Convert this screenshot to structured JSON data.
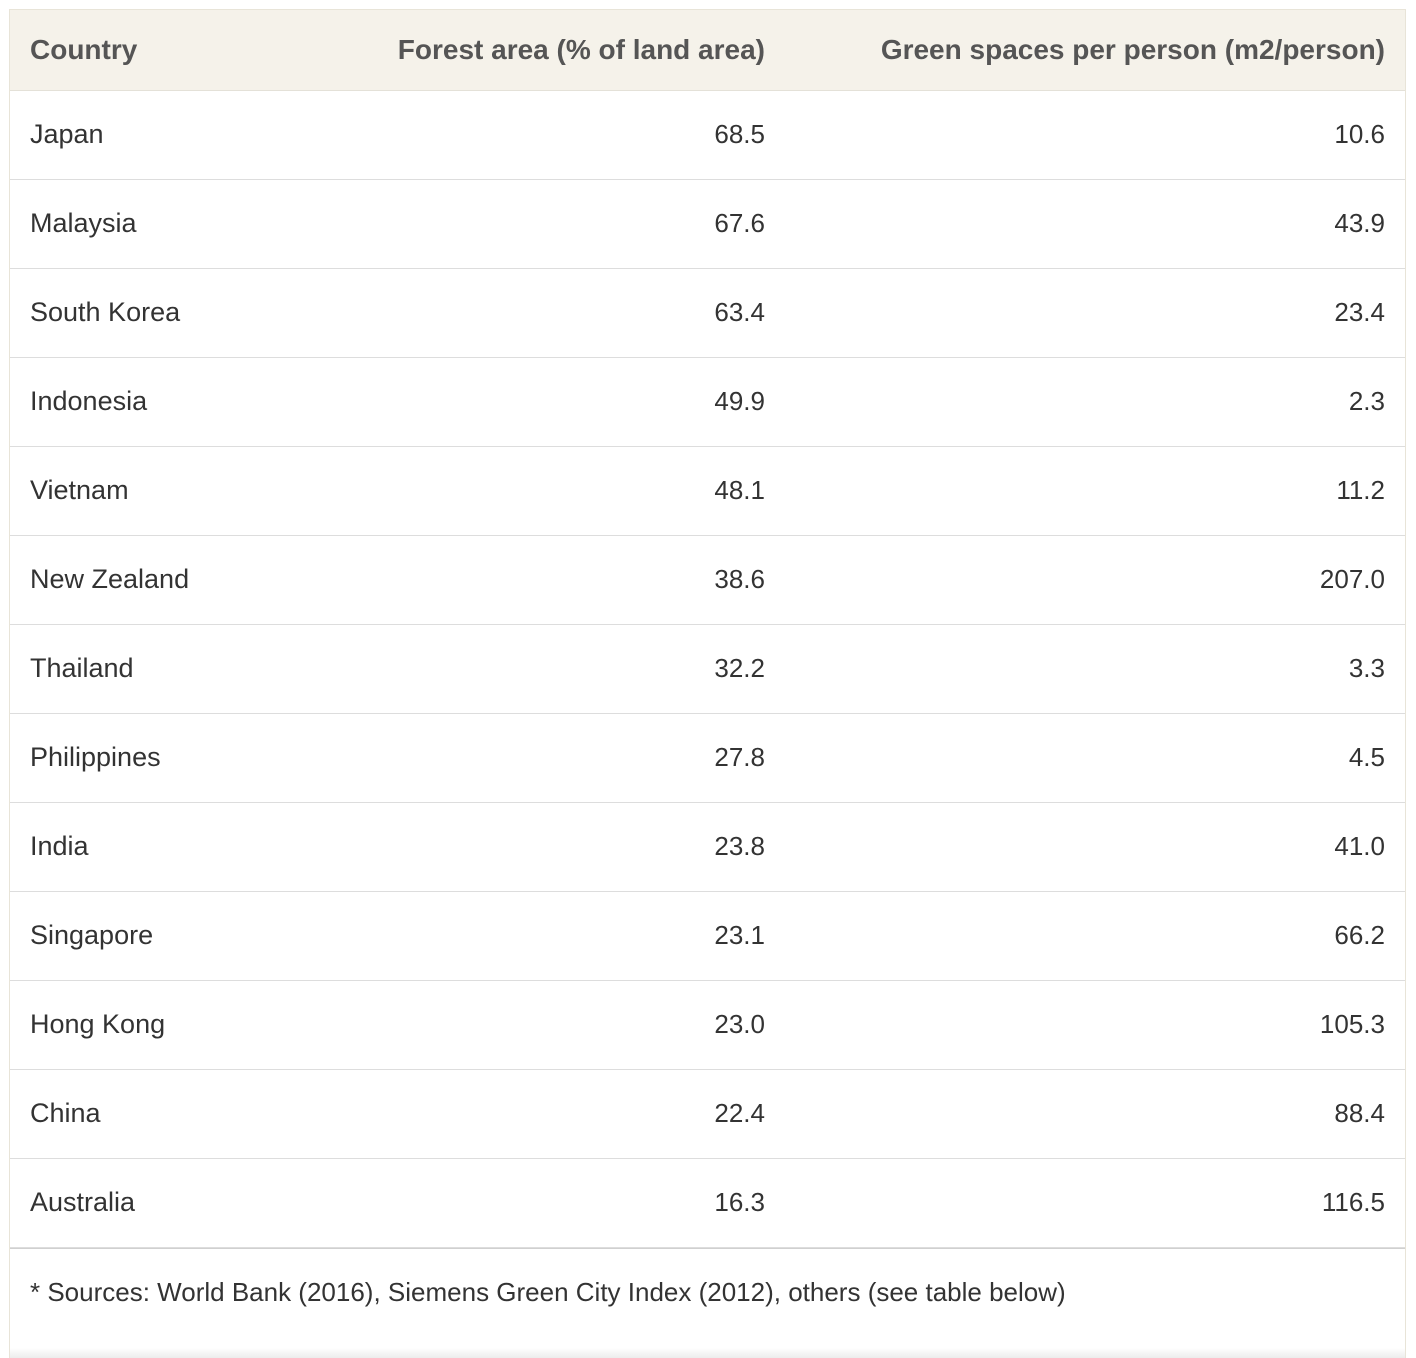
{
  "table": {
    "headers": {
      "country": "Country",
      "forest": "Forest area (% of land area)",
      "green": "Green spaces per person (m2/person)"
    },
    "rows": [
      {
        "country": "Japan",
        "forest": "68.5",
        "green": "10.6"
      },
      {
        "country": "Malaysia",
        "forest": "67.6",
        "green": "43.9"
      },
      {
        "country": "South Korea",
        "forest": "63.4",
        "green": "23.4"
      },
      {
        "country": "Indonesia",
        "forest": "49.9",
        "green": "2.3"
      },
      {
        "country": "Vietnam",
        "forest": "48.1",
        "green": "11.2"
      },
      {
        "country": "New Zealand",
        "forest": "38.6",
        "green": "207.0"
      },
      {
        "country": "Thailand",
        "forest": "32.2",
        "green": "3.3"
      },
      {
        "country": "Philippines",
        "forest": "27.8",
        "green": "4.5"
      },
      {
        "country": "India",
        "forest": "23.8",
        "green": "41.0"
      },
      {
        "country": "Singapore",
        "forest": "23.1",
        "green": "66.2"
      },
      {
        "country": "Hong Kong",
        "forest": "23.0",
        "green": "105.3"
      },
      {
        "country": "China",
        "forest": "22.4",
        "green": "88.4"
      },
      {
        "country": "Australia",
        "forest": "16.3",
        "green": "116.5"
      }
    ],
    "footnote": "* Sources: World Bank (2016), Siemens Green City Index (2012), others (see table below)"
  },
  "colors": {
    "header_bg": "#f5f2ea",
    "text": "#333333",
    "header_text": "#555555",
    "row_border": "#dddddd"
  }
}
